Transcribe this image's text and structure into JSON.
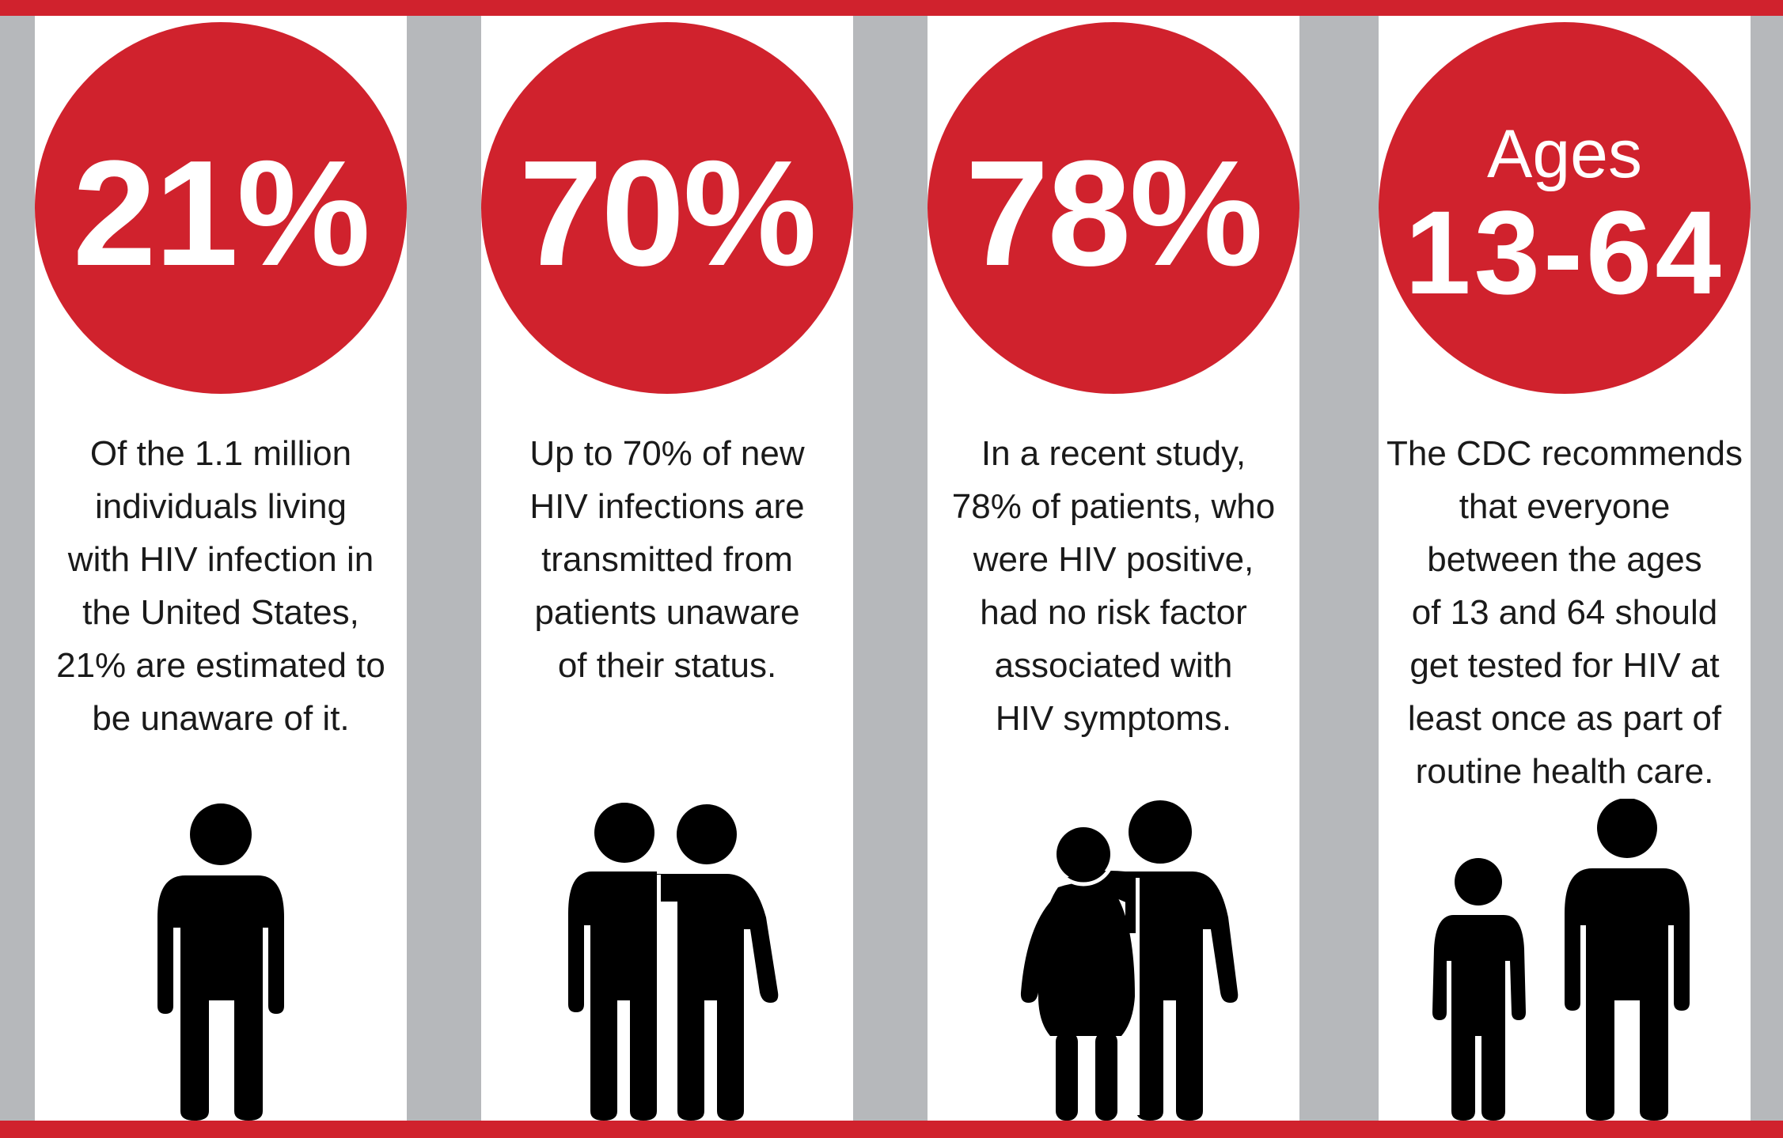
{
  "colors": {
    "accent_red": "#d0222d",
    "background_gray": "#b6b8bb",
    "panel_white": "#ffffff",
    "text_dark": "#1a1a1a"
  },
  "stats": [
    {
      "value": "21%",
      "lines": [
        "Of the 1.1 million",
        "individuals living",
        "with HIV infection in",
        "the United States,",
        "21% are estimated to",
        "be unaware of it."
      ],
      "icon": "single-person-icon"
    },
    {
      "value": "70%",
      "lines": [
        "Up to 70% of new",
        "HIV infections are",
        "transmitted from",
        "patients unaware",
        "of their status."
      ],
      "icon": "couple-icon"
    },
    {
      "value": "78%",
      "lines": [
        "In a recent study,",
        "78% of patients, who",
        "were HIV positive,",
        "had no risk factor",
        "associated with",
        "HIV symptoms."
      ],
      "icon": "couple-man-woman-icon"
    },
    {
      "label": "Ages",
      "value": "13-64",
      "lines": [
        "The CDC recommends",
        "that everyone",
        "between the ages",
        "of 13 and 64 should",
        "get tested for HIV at",
        "least once as part of",
        "routine health care."
      ],
      "icon": "adult-and-child-icon"
    }
  ]
}
